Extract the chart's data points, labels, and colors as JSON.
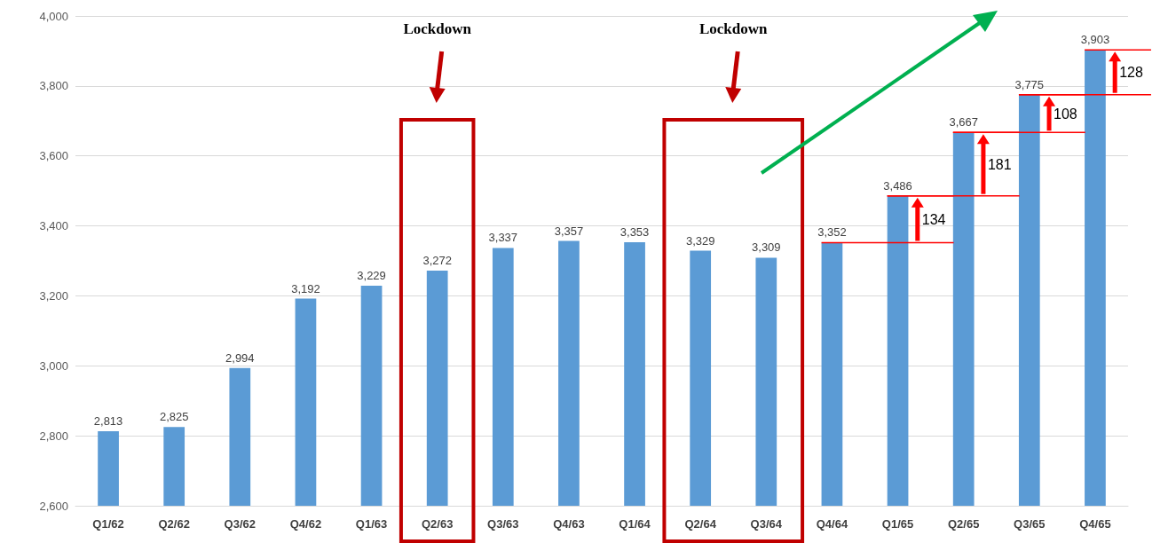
{
  "chart_data": {
    "type": "bar",
    "categories": [
      "Q1/62",
      "Q2/62",
      "Q3/62",
      "Q4/62",
      "Q1/63",
      "Q2/63",
      "Q3/63",
      "Q4/63",
      "Q1/64",
      "Q2/64",
      "Q3/64",
      "Q4/64",
      "Q1/65",
      "Q2/65",
      "Q3/65",
      "Q4/65"
    ],
    "series": [
      {
        "color": "#5b9bd5",
        "values": [
          2813,
          2825,
          2994,
          3192,
          3229,
          3272,
          3337,
          3357,
          3353,
          3329,
          3309,
          3352,
          3486,
          3667,
          3775,
          3903
        ],
        "value_labels": [
          "2,813",
          "2,825",
          "2,994",
          "3,192",
          "3,229",
          "3,272",
          "3,337",
          "3,357",
          "3,353",
          "3,329",
          "3,309",
          "3,352",
          "3,486",
          "3,667",
          "3,775",
          "3,903"
        ]
      }
    ],
    "ylim": [
      2600,
      4000
    ],
    "yticks": [
      {
        "value": 2600,
        "label": "2,600"
      },
      {
        "value": 2800,
        "label": "2,800"
      },
      {
        "value": 3000,
        "label": "3,000"
      },
      {
        "value": 3200,
        "label": "3,200"
      },
      {
        "value": 3400,
        "label": "3,400"
      },
      {
        "value": 3600,
        "label": "3,600"
      },
      {
        "value": 3800,
        "label": "3,800"
      },
      {
        "value": 4000,
        "label": "4,000"
      }
    ],
    "grid": "y",
    "annotations": [
      "Lockdown",
      "Lockdown",
      {
        "text": "134",
        "x": "Q1/65",
        "y": 3486
      },
      {
        "text": "181",
        "x": "Q2/65",
        "y": 3667
      },
      {
        "text": "108",
        "x": "Q3/65",
        "y": 3775
      },
      {
        "text": "128",
        "x": "Q4/65",
        "y": 3903
      }
    ]
  }
}
